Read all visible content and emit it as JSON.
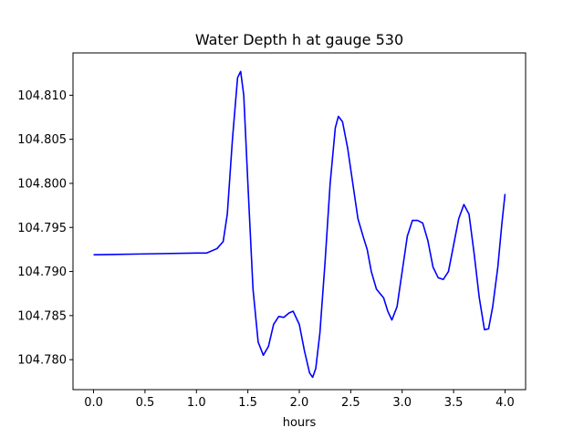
{
  "chart_data": {
    "type": "line",
    "title": "Water Depth h at gauge 530",
    "xlabel": "hours",
    "ylabel": "",
    "xlim": [
      -0.2,
      4.2
    ],
    "ylim": [
      104.7766,
      104.8148
    ],
    "xticks": [
      0.0,
      0.5,
      1.0,
      1.5,
      2.0,
      2.5,
      3.0,
      3.5,
      4.0
    ],
    "xtick_labels": [
      "0.0",
      "0.5",
      "1.0",
      "1.5",
      "2.0",
      "2.5",
      "3.0",
      "3.5",
      "4.0"
    ],
    "yticks": [
      104.78,
      104.785,
      104.79,
      104.795,
      104.8,
      104.805,
      104.81
    ],
    "ytick_labels": [
      "104.780",
      "104.785",
      "104.790",
      "104.795",
      "104.800",
      "104.805",
      "104.810"
    ],
    "grid": false,
    "series": [
      {
        "color": "#0000ff",
        "points": [
          [
            0.0,
            104.7919
          ],
          [
            0.5,
            104.792
          ],
          [
            1.0,
            104.7921
          ],
          [
            1.1,
            104.7921
          ],
          [
            1.2,
            104.7926
          ],
          [
            1.26,
            104.7934
          ],
          [
            1.3,
            104.7965
          ],
          [
            1.35,
            104.805
          ],
          [
            1.4,
            104.812
          ],
          [
            1.43,
            104.8127
          ],
          [
            1.46,
            104.81
          ],
          [
            1.5,
            104.8
          ],
          [
            1.55,
            104.788
          ],
          [
            1.6,
            104.782
          ],
          [
            1.65,
            104.7805
          ],
          [
            1.7,
            104.7815
          ],
          [
            1.75,
            104.784
          ],
          [
            1.8,
            104.7849
          ],
          [
            1.85,
            104.7848
          ],
          [
            1.9,
            104.7853
          ],
          [
            1.94,
            104.7855
          ],
          [
            2.0,
            104.784
          ],
          [
            2.05,
            104.781
          ],
          [
            2.1,
            104.7785
          ],
          [
            2.13,
            104.778
          ],
          [
            2.16,
            104.779
          ],
          [
            2.2,
            104.783
          ],
          [
            2.25,
            104.791
          ],
          [
            2.3,
            104.8
          ],
          [
            2.35,
            104.8063
          ],
          [
            2.38,
            104.8076
          ],
          [
            2.42,
            104.807
          ],
          [
            2.47,
            104.804
          ],
          [
            2.52,
            104.8
          ],
          [
            2.57,
            104.796
          ],
          [
            2.62,
            104.794
          ],
          [
            2.66,
            104.7925
          ],
          [
            2.7,
            104.79
          ],
          [
            2.75,
            104.788
          ],
          [
            2.82,
            104.787
          ],
          [
            2.86,
            104.7855
          ],
          [
            2.9,
            104.7845
          ],
          [
            2.95,
            104.786
          ],
          [
            3.0,
            104.79
          ],
          [
            3.05,
            104.794
          ],
          [
            3.1,
            104.7958
          ],
          [
            3.15,
            104.7958
          ],
          [
            3.2,
            104.7955
          ],
          [
            3.25,
            104.7935
          ],
          [
            3.3,
            104.7905
          ],
          [
            3.35,
            104.7893
          ],
          [
            3.4,
            104.7891
          ],
          [
            3.45,
            104.79
          ],
          [
            3.5,
            104.793
          ],
          [
            3.55,
            104.796
          ],
          [
            3.6,
            104.7976
          ],
          [
            3.65,
            104.7965
          ],
          [
            3.7,
            104.792
          ],
          [
            3.75,
            104.787
          ],
          [
            3.8,
            104.7834
          ],
          [
            3.84,
            104.7835
          ],
          [
            3.88,
            104.786
          ],
          [
            3.93,
            104.7905
          ],
          [
            3.97,
            104.7955
          ],
          [
            4.0,
            104.7988
          ]
        ]
      }
    ]
  }
}
